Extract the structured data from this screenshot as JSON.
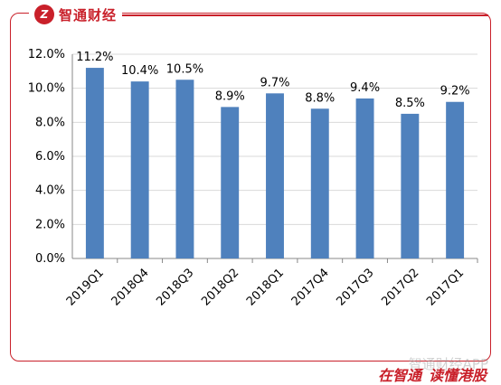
{
  "brand": {
    "logo_mark": "Z",
    "name": "智通财经"
  },
  "footer": {
    "slogan_part1": "在智通",
    "slogan_part2": "读懂港股",
    "watermark": "智通财经APP"
  },
  "colors": {
    "bar": "#4f81bd",
    "brand_red": "#c9202a",
    "grid": "#d9d9d9",
    "axis": "#888888"
  },
  "chart_data": {
    "type": "bar",
    "title": "",
    "xlabel": "",
    "ylabel": "",
    "categories": [
      "2019Q1",
      "2018Q4",
      "2018Q3",
      "2018Q2",
      "2018Q1",
      "2017Q4",
      "2017Q3",
      "2017Q2",
      "2017Q1"
    ],
    "values": [
      11.2,
      10.4,
      10.5,
      8.9,
      9.7,
      8.8,
      9.4,
      8.5,
      9.2
    ],
    "data_labels": [
      "11.2%",
      "10.4%",
      "10.5%",
      "8.9%",
      "9.7%",
      "8.8%",
      "9.4%",
      "8.5%",
      "9.2%"
    ],
    "ylim": [
      0,
      12
    ],
    "yticks": [
      0,
      2,
      4,
      6,
      8,
      10,
      12
    ],
    "ytick_labels": [
      "0.0%",
      "2.0%",
      "4.0%",
      "6.0%",
      "8.0%",
      "10.0%",
      "12.0%"
    ],
    "grid": true,
    "legend": "none"
  }
}
